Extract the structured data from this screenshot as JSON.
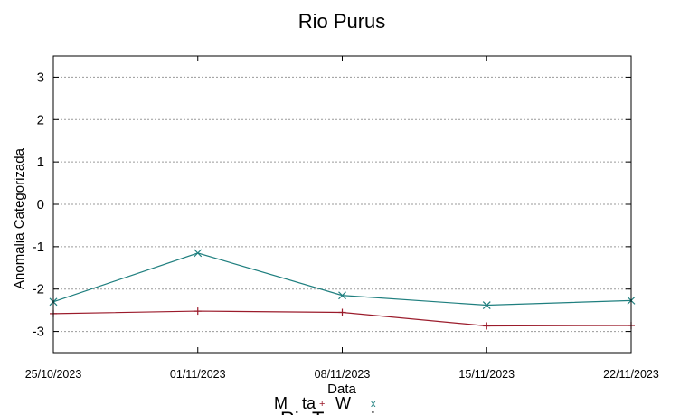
{
  "chart_data": {
    "type": "line",
    "title": "Rio Purus",
    "xlabel": "Data",
    "ylabel": "Anomalia Categorizada",
    "x": [
      "25/10/2023",
      "01/11/2023",
      "08/11/2023",
      "15/11/2023",
      "22/11/2023"
    ],
    "ylim": [
      -3.5,
      3.5
    ],
    "yticks": [
      3,
      2,
      1,
      0,
      -1,
      -2,
      -3
    ],
    "grid": true,
    "series": [
      {
        "values": [
          -2.3,
          -1.15,
          -2.15,
          -2.38,
          -2.27
        ],
        "color": "#1f7f7f",
        "marker": "x"
      },
      {
        "values": [
          -2.58,
          -2.52,
          -2.55,
          -2.87,
          -2.86
        ],
        "color": "#9b1b2b",
        "marker": "+"
      }
    ],
    "footer_fragments": [
      "M",
      "ta",
      "W",
      "Ri",
      "T",
      "i"
    ]
  }
}
